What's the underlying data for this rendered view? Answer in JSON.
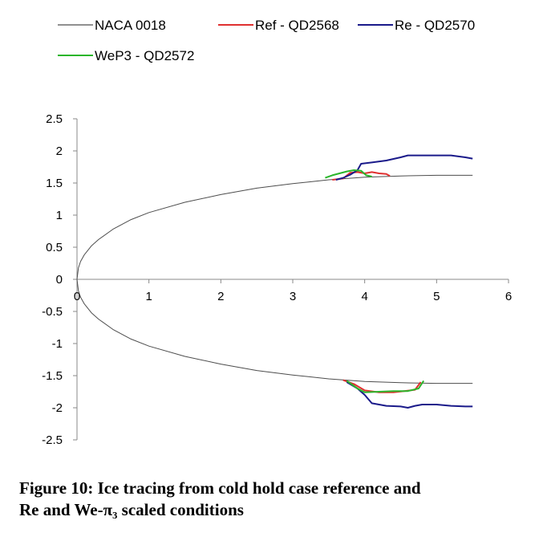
{
  "chart_data": {
    "type": "line",
    "xlabel": "",
    "ylabel": "",
    "xlim": [
      0,
      6
    ],
    "ylim": [
      -2.5,
      2.5
    ],
    "xticks": [
      "0",
      "1",
      "2",
      "3",
      "4",
      "5",
      "6"
    ],
    "yticks": [
      "2.5",
      "2",
      "1.5",
      "1",
      "0.5",
      "0",
      "-0.5",
      "-1",
      "-1.5",
      "-2",
      "-2.5"
    ],
    "grid": false,
    "legend_position": "top",
    "series": [
      {
        "name": "NACA 0018",
        "color": "#4d4d4d",
        "x": [
          0,
          0.02,
          0.05,
          0.1,
          0.2,
          0.3,
          0.5,
          0.75,
          1.0,
          1.5,
          2.0,
          2.5,
          3.0,
          3.5,
          4.0,
          4.5,
          5.0,
          5.5
        ],
        "y_upper": [
          0,
          0.18,
          0.28,
          0.38,
          0.52,
          0.62,
          0.78,
          0.93,
          1.04,
          1.2,
          1.32,
          1.42,
          1.49,
          1.55,
          1.59,
          1.61,
          1.62,
          1.62
        ],
        "y_lower": [
          0,
          -0.18,
          -0.28,
          -0.38,
          -0.52,
          -0.62,
          -0.78,
          -0.93,
          -1.04,
          -1.2,
          -1.32,
          -1.42,
          -1.49,
          -1.55,
          -1.59,
          -1.61,
          -1.62,
          -1.62
        ]
      },
      {
        "name": "Ref - QD2568",
        "color": "#e03030",
        "upper": {
          "x": [
            3.55,
            3.7,
            3.8,
            3.9,
            4.0,
            4.1,
            4.2,
            4.3,
            4.35
          ],
          "y": [
            1.55,
            1.57,
            1.66,
            1.67,
            1.65,
            1.67,
            1.65,
            1.64,
            1.61
          ]
        },
        "lower": {
          "x": [
            3.7,
            3.85,
            4.0,
            4.2,
            4.4,
            4.55,
            4.7,
            4.78
          ],
          "y": [
            -1.57,
            -1.63,
            -1.73,
            -1.76,
            -1.76,
            -1.74,
            -1.72,
            -1.6
          ]
        }
      },
      {
        "name": "Re - QD2570",
        "color": "#1a1a8a",
        "upper": {
          "x": [
            3.6,
            3.7,
            3.8,
            3.9,
            3.95,
            4.1,
            4.3,
            4.5,
            4.6,
            4.8,
            5.0,
            5.2,
            5.4,
            5.5
          ],
          "y": [
            1.55,
            1.58,
            1.63,
            1.7,
            1.8,
            1.82,
            1.85,
            1.9,
            1.93,
            1.93,
            1.93,
            1.93,
            1.9,
            1.88
          ]
        },
        "lower": {
          "x": [
            3.75,
            3.9,
            4.0,
            4.1,
            4.3,
            4.5,
            4.6,
            4.7,
            4.8,
            5.0,
            5.2,
            5.4,
            5.5
          ],
          "y": [
            -1.6,
            -1.7,
            -1.8,
            -1.93,
            -1.97,
            -1.98,
            -2.0,
            -1.97,
            -1.95,
            -1.95,
            -1.97,
            -1.98,
            -1.98
          ]
        }
      },
      {
        "name": "WeP3 - QD2572",
        "color": "#2bb52b",
        "upper": {
          "x": [
            3.45,
            3.55,
            3.65,
            3.75,
            3.85,
            3.95,
            4.02,
            4.1
          ],
          "y": [
            1.58,
            1.62,
            1.65,
            1.68,
            1.7,
            1.69,
            1.62,
            1.6
          ]
        },
        "lower": {
          "x": [
            3.75,
            3.9,
            4.0,
            4.2,
            4.4,
            4.6,
            4.75,
            4.82
          ],
          "y": [
            -1.58,
            -1.7,
            -1.76,
            -1.75,
            -1.74,
            -1.74,
            -1.7,
            -1.58
          ]
        }
      }
    ]
  },
  "caption": {
    "line1": "Figure 10: Ice tracing from cold hold case reference and",
    "line2": "Re and We-π₃ scaled conditions"
  }
}
